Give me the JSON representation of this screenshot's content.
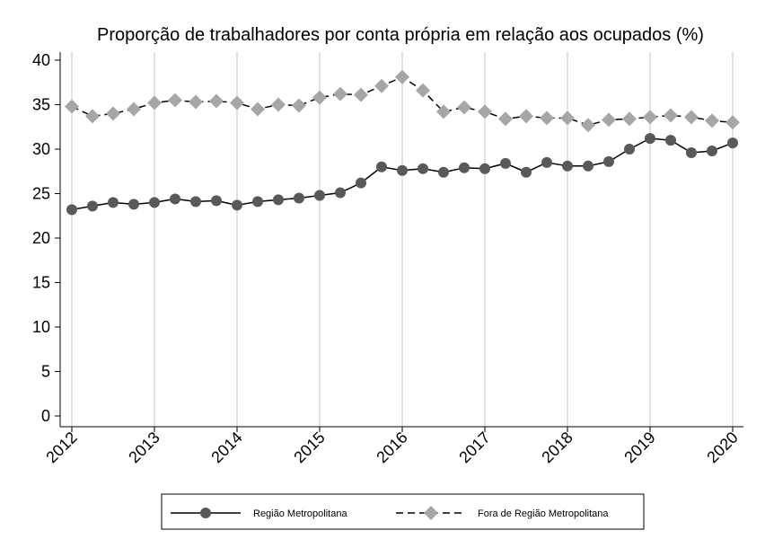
{
  "chart_data": {
    "type": "line",
    "title": "Proporção de trabalhadores por conta própria em relação aos ocupados (%)",
    "xlabel": "",
    "ylabel": "",
    "xlim": [
      2012,
      2020
    ],
    "ylim": [
      0,
      40
    ],
    "x_ticks": [
      "2012",
      "2013",
      "2014",
      "2015",
      "2016",
      "2017",
      "2018",
      "2019",
      "2020"
    ],
    "y_ticks": [
      "0",
      "5",
      "10",
      "15",
      "20",
      "25",
      "30",
      "35",
      "40"
    ],
    "grid": "vertical",
    "legend_position": "bottom",
    "x": [
      2012.0,
      2012.25,
      2012.5,
      2012.75,
      2013.0,
      2013.25,
      2013.5,
      2013.75,
      2014.0,
      2014.25,
      2014.5,
      2014.75,
      2015.0,
      2015.25,
      2015.5,
      2015.75,
      2016.0,
      2016.25,
      2016.5,
      2016.75,
      2017.0,
      2017.25,
      2017.5,
      2017.75,
      2018.0,
      2018.25,
      2018.5,
      2018.75,
      2019.0,
      2019.25,
      2019.5,
      2019.75,
      2020.0
    ],
    "series": [
      {
        "name": "Região Metropolitana",
        "color": "#595959",
        "line": "solid",
        "marker": "circle",
        "values": [
          23.2,
          23.6,
          24.0,
          23.8,
          24.0,
          24.4,
          24.1,
          24.2,
          23.7,
          24.1,
          24.3,
          24.5,
          24.8,
          25.1,
          26.2,
          28.0,
          27.6,
          27.8,
          27.4,
          27.9,
          27.8,
          28.4,
          27.4,
          28.5,
          28.1,
          28.1,
          28.6,
          30.0,
          31.2,
          31.0,
          29.6,
          29.8,
          30.7
        ]
      },
      {
        "name": "Fora de Região Metropolitana",
        "color": "#a6a6a6",
        "line": "dashed",
        "marker": "diamond",
        "values": [
          34.8,
          33.7,
          34.0,
          34.5,
          35.2,
          35.5,
          35.3,
          35.4,
          35.2,
          34.5,
          35.0,
          34.9,
          35.8,
          36.2,
          36.1,
          37.1,
          38.1,
          36.6,
          34.2,
          34.7,
          34.2,
          33.4,
          33.7,
          33.5,
          33.5,
          32.7,
          33.3,
          33.4,
          33.6,
          33.8,
          33.6,
          33.2,
          33.0
        ]
      }
    ]
  }
}
